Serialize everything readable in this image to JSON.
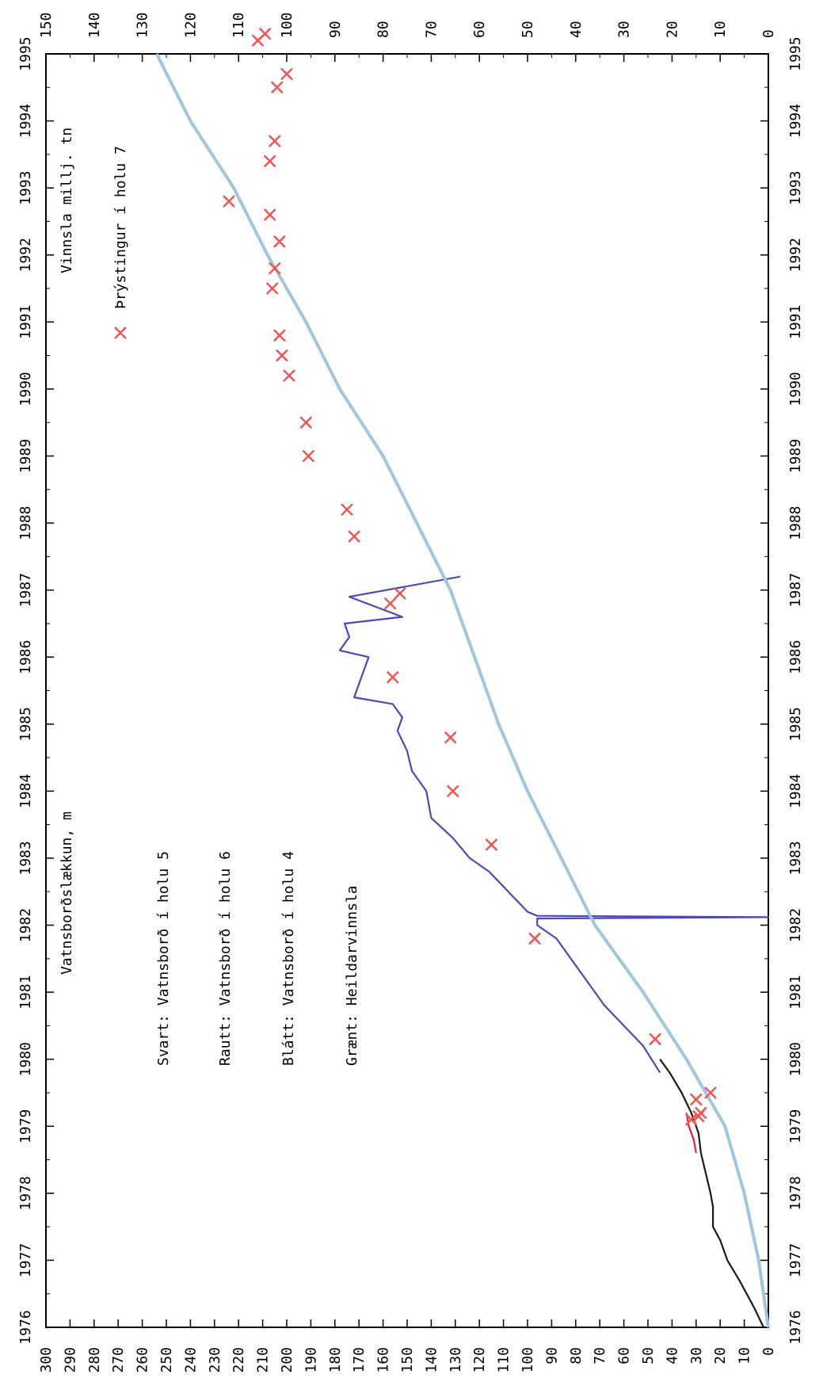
{
  "chart_data": {
    "type": "line",
    "orientation": "rotated",
    "x": {
      "range": [
        1976,
        1995
      ],
      "ticks": [
        "1976",
        "1977",
        "1978",
        "1979",
        "1980",
        "1981",
        "1982",
        "1983",
        "1984",
        "1985",
        "1986",
        "1987",
        "1988",
        "1989",
        "1990",
        "1991",
        "1992",
        "1993",
        "1994",
        "1995"
      ]
    },
    "y_left": {
      "range": [
        0,
        300
      ],
      "ticks": [
        "300",
        "290",
        "280",
        "270",
        "260",
        "250",
        "240",
        "230",
        "220",
        "210",
        "200",
        "190",
        "180",
        "170",
        "160",
        "150",
        "140",
        "130",
        "120",
        "110",
        "100",
        "90",
        "80",
        "70",
        "60",
        "50",
        "40",
        "30",
        "20",
        "10",
        "0"
      ]
    },
    "y_right": {
      "range": [
        0,
        150
      ],
      "ticks": [
        "150",
        "140",
        "130",
        "120",
        "110",
        "100",
        "90",
        "80",
        "70",
        "60",
        "50",
        "40",
        "30",
        "20",
        "10",
        "0"
      ]
    },
    "labels": {
      "left_axis": "Vatnsborðslækkun, m",
      "right_axis": "Vinnsla millj. tn",
      "marker": "Þrýstingur í holu 7",
      "svart": "Svart: Vatnsborð í holu 5",
      "rautt": "Rautt: Vatnsborð í holu 6",
      "blatt": "Blátt: Vatnsborð í holu 4",
      "graent": "Grænt: Heildarvinnsla"
    },
    "series": [
      {
        "key": "svart",
        "color": "#1a1a1a",
        "axis": "left",
        "points": [
          [
            1976.0,
            2
          ],
          [
            1976.3,
            6
          ],
          [
            1976.7,
            12
          ],
          [
            1977.0,
            17
          ],
          [
            1977.3,
            20
          ],
          [
            1977.5,
            23
          ],
          [
            1977.8,
            23
          ],
          [
            1978.0,
            24
          ],
          [
            1978.3,
            26
          ],
          [
            1978.6,
            28
          ],
          [
            1978.9,
            29
          ],
          [
            1979.2,
            32
          ],
          [
            1979.5,
            36
          ],
          [
            1979.8,
            41
          ],
          [
            1980.0,
            45
          ]
        ]
      },
      {
        "key": "rautt",
        "color": "#e8203a",
        "axis": "left",
        "points": [
          [
            1978.6,
            30
          ],
          [
            1978.8,
            31
          ],
          [
            1979.0,
            33
          ],
          [
            1979.2,
            34
          ]
        ]
      },
      {
        "key": "blatt",
        "color": "#4b48b8",
        "axis": "left",
        "points": [
          [
            1979.8,
            45
          ],
          [
            1980.2,
            52
          ],
          [
            1980.5,
            60
          ],
          [
            1980.8,
            68
          ],
          [
            1981.0,
            72
          ],
          [
            1981.5,
            82
          ],
          [
            1981.8,
            88
          ],
          [
            1982.0,
            96
          ],
          [
            1982.1,
            96
          ],
          [
            1982.12,
            0
          ],
          [
            1982.14,
            96
          ],
          [
            1982.2,
            100
          ],
          [
            1982.5,
            108
          ],
          [
            1982.8,
            116
          ],
          [
            1983.0,
            124
          ],
          [
            1983.3,
            131
          ],
          [
            1983.6,
            140
          ],
          [
            1984.0,
            142
          ],
          [
            1984.3,
            148
          ],
          [
            1984.6,
            150
          ],
          [
            1984.9,
            154
          ],
          [
            1985.1,
            152
          ],
          [
            1985.3,
            156
          ],
          [
            1985.4,
            172
          ],
          [
            1985.6,
            170
          ],
          [
            1985.8,
            168
          ],
          [
            1986.0,
            166
          ],
          [
            1986.1,
            178
          ],
          [
            1986.3,
            174
          ],
          [
            1986.5,
            176
          ],
          [
            1986.6,
            152
          ],
          [
            1986.9,
            174
          ],
          [
            1987.2,
            128
          ]
        ]
      },
      {
        "key": "graent",
        "color": "#9fc6dd",
        "axis": "right",
        "points": [
          [
            1976.0,
            0
          ],
          [
            1977.0,
            2
          ],
          [
            1978.0,
            5
          ],
          [
            1979.0,
            9
          ],
          [
            1980.0,
            17
          ],
          [
            1981.0,
            26
          ],
          [
            1982.0,
            36
          ],
          [
            1983.0,
            43
          ],
          [
            1984.0,
            50
          ],
          [
            1985.0,
            56
          ],
          [
            1986.0,
            61
          ],
          [
            1987.0,
            66
          ],
          [
            1988.0,
            73
          ],
          [
            1989.0,
            80
          ],
          [
            1990.0,
            89
          ],
          [
            1991.0,
            96
          ],
          [
            1992.0,
            104
          ],
          [
            1993.0,
            111
          ],
          [
            1994.0,
            120
          ],
          [
            1995.0,
            127
          ]
        ]
      }
    ],
    "markers": {
      "color": "#ee5555",
      "axis": "left",
      "points": [
        [
          1979.1,
          32
        ],
        [
          1979.2,
          28
        ],
        [
          1979.15,
          29
        ],
        [
          1979.4,
          30
        ],
        [
          1979.5,
          24
        ],
        [
          1980.3,
          47
        ],
        [
          1981.8,
          97
        ],
        [
          1983.2,
          115
        ],
        [
          1984.0,
          131
        ],
        [
          1984.8,
          132
        ],
        [
          1985.7,
          156
        ],
        [
          1986.8,
          157
        ],
        [
          1986.95,
          153
        ],
        [
          1987.8,
          172
        ],
        [
          1988.2,
          175
        ],
        [
          1989.0,
          191
        ],
        [
          1989.5,
          192
        ],
        [
          1990.2,
          199
        ],
        [
          1990.5,
          202
        ],
        [
          1990.8,
          203
        ],
        [
          1991.5,
          206
        ],
        [
          1991.8,
          205
        ],
        [
          1992.2,
          203
        ],
        [
          1992.6,
          207
        ],
        [
          1992.8,
          224
        ],
        [
          1993.4,
          207
        ],
        [
          1993.7,
          205
        ],
        [
          1994.5,
          204
        ],
        [
          1994.7,
          200
        ],
        [
          1995.2,
          212
        ],
        [
          1995.3,
          209
        ]
      ]
    }
  }
}
